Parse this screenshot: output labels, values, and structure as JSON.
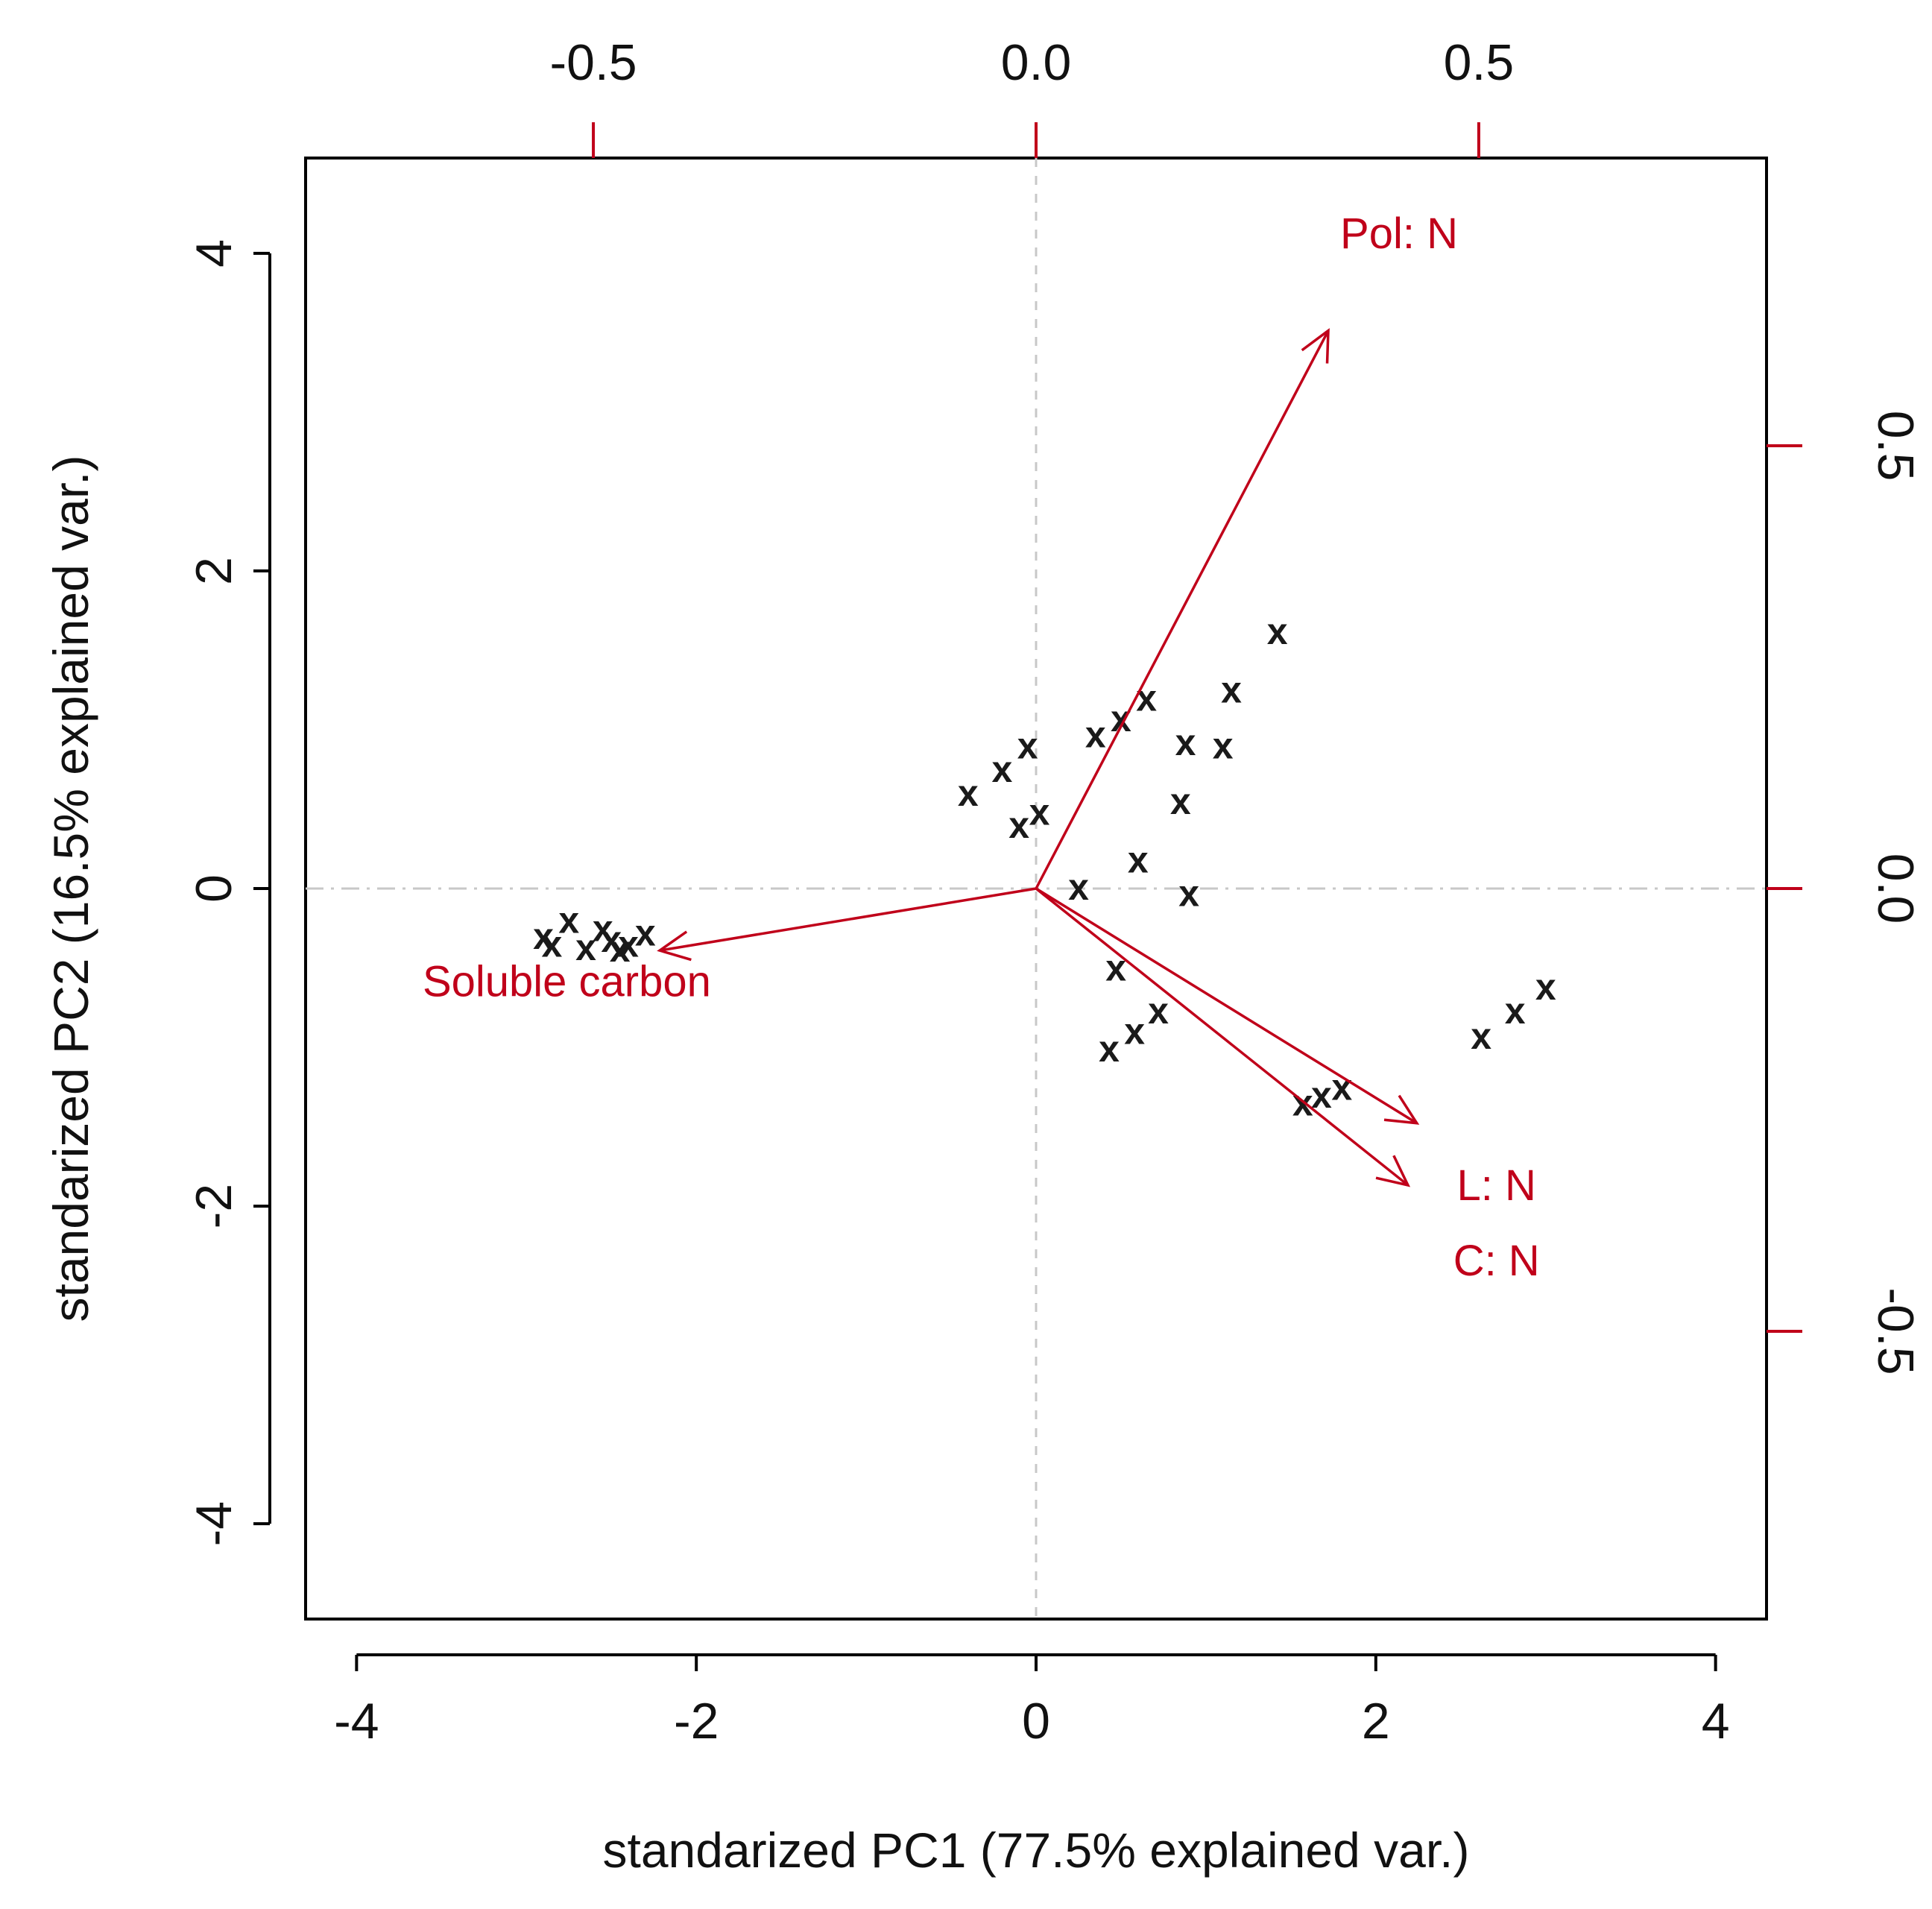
{
  "chart_data": {
    "type": "scatter",
    "subtype": "pca-biplot",
    "xlabel": "standarized PC1 (77.5% explained var.)",
    "ylabel": "standarized PC2 (16.5% explained var.)",
    "xlim": [
      -4.3,
      4.3
    ],
    "ylim": [
      -4.6,
      4.6
    ],
    "x_ticks": [
      -4,
      -2,
      0,
      2,
      4
    ],
    "x_tick_labels": [
      "-4",
      "-2",
      "0",
      "2",
      "4"
    ],
    "y_ticks": [
      -4,
      -2,
      0,
      2,
      4
    ],
    "y_tick_labels": [
      "-4",
      "-2",
      "0",
      "2",
      "4"
    ],
    "loading_lim": [
      -0.825,
      0.825
    ],
    "top_ticks": [
      -0.5,
      0.0,
      0.5
    ],
    "top_tick_labels": [
      "-0.5",
      "0.0",
      "0.5"
    ],
    "right_ticks": [
      -0.5,
      0.0,
      0.5
    ],
    "right_tick_labels": [
      "-0.5",
      "0.0",
      "0.5"
    ],
    "point_marker": "x",
    "points": [
      {
        "x": -2.9,
        "y": -0.3
      },
      {
        "x": -2.85,
        "y": -0.35
      },
      {
        "x": -2.75,
        "y": -0.2
      },
      {
        "x": -2.65,
        "y": -0.37
      },
      {
        "x": -2.55,
        "y": -0.25
      },
      {
        "x": -2.5,
        "y": -0.32
      },
      {
        "x": -2.45,
        "y": -0.38
      },
      {
        "x": -2.4,
        "y": -0.35
      },
      {
        "x": -2.3,
        "y": -0.28
      },
      {
        "x": -0.4,
        "y": 0.6
      },
      {
        "x": -0.2,
        "y": 0.75
      },
      {
        "x": -0.05,
        "y": 0.9
      },
      {
        "x": -0.1,
        "y": 0.4
      },
      {
        "x": 0.02,
        "y": 0.48
      },
      {
        "x": 0.35,
        "y": 0.97
      },
      {
        "x": 0.5,
        "y": 1.07
      },
      {
        "x": 0.65,
        "y": 1.2
      },
      {
        "x": 0.88,
        "y": 0.92
      },
      {
        "x": 1.1,
        "y": 0.9
      },
      {
        "x": 1.15,
        "y": 1.25
      },
      {
        "x": 1.42,
        "y": 1.62
      },
      {
        "x": 0.85,
        "y": 0.55
      },
      {
        "x": 0.6,
        "y": 0.18
      },
      {
        "x": 0.25,
        "y": 0.01
      },
      {
        "x": 0.9,
        "y": -0.03
      },
      {
        "x": 0.47,
        "y": -0.5
      },
      {
        "x": 0.72,
        "y": -0.77
      },
      {
        "x": 0.58,
        "y": -0.9
      },
      {
        "x": 0.43,
        "y": -1.01
      },
      {
        "x": 1.57,
        "y": -1.35
      },
      {
        "x": 1.68,
        "y": -1.3
      },
      {
        "x": 1.8,
        "y": -1.25
      },
      {
        "x": 2.62,
        "y": -0.93
      },
      {
        "x": 2.82,
        "y": -0.77
      },
      {
        "x": 3.0,
        "y": -0.62
      }
    ],
    "loadings": [
      {
        "name": "Pol: N",
        "x": 0.33,
        "y": 0.63,
        "label_x": 0.41,
        "label_y": 0.74
      },
      {
        "name": "Soluble carbon",
        "x": -0.425,
        "y": -0.07,
        "label_x": -0.53,
        "label_y": -0.105
      },
      {
        "name": "L: N",
        "x": 0.43,
        "y": -0.265,
        "label_x": 0.52,
        "label_y": -0.335
      },
      {
        "name": "C: N",
        "x": 0.42,
        "y": -0.335,
        "label_x": 0.52,
        "label_y": -0.42
      }
    ],
    "colors": {
      "loading": "#c0001a",
      "points": "#1a1a1a",
      "reference_lines": "#c8c8c8"
    }
  }
}
